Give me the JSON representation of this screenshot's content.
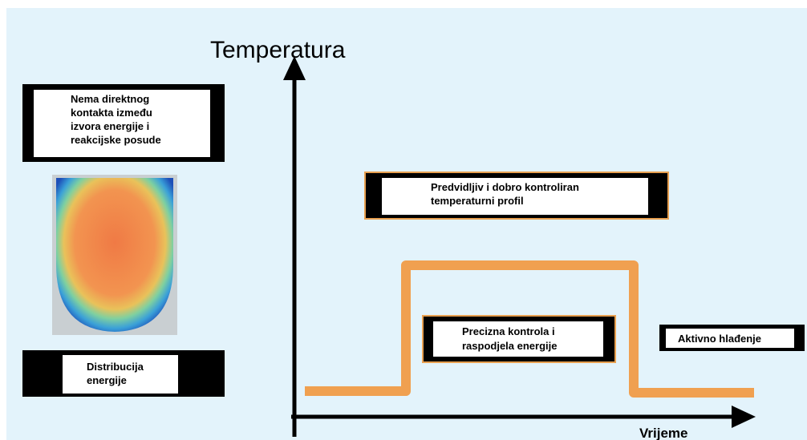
{
  "axes": {
    "y_label": "Temperatura",
    "x_label": "Vrijeme"
  },
  "boxes": [
    {
      "lines": [
        "Nema direktnog",
        "kontakta između",
        "izvora energije i",
        "reakcijske posude"
      ]
    },
    {
      "lines": [
        "Predvidljiv i dobro kontroliran",
        "temperaturni profil"
      ]
    },
    {
      "lines": [
        "Precizna kontrola i",
        "raspodjela energije"
      ]
    },
    {
      "lines": [
        "Aktivno hlađenje"
      ]
    },
    {
      "lines": [
        "Distribucija",
        "energije"
      ]
    }
  ]
}
